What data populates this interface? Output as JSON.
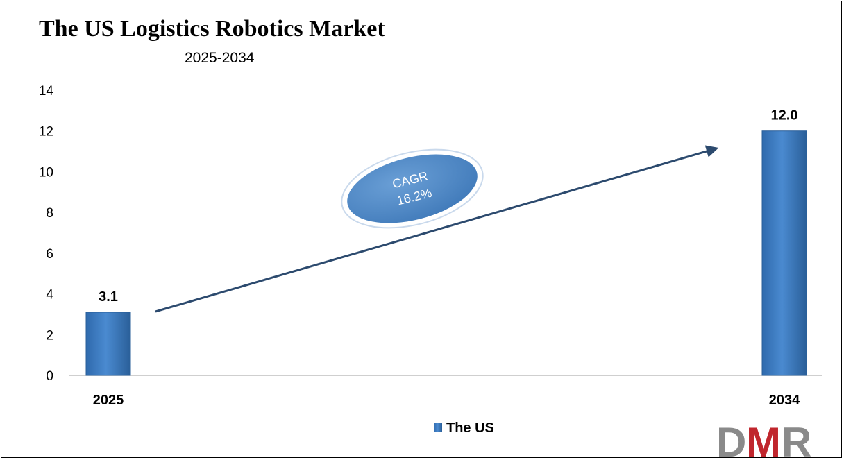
{
  "colors": {
    "bar": "#3f7fc4",
    "bar_dark": "#2a5f99",
    "arrow": "#2c4a6e",
    "ellipse_fill": "#4a86c5",
    "logo_gray": "#8a8a8a",
    "logo_red": "#c0262d"
  },
  "chart_data": {
    "type": "bar",
    "title": "The US Logistics Robotics Market",
    "subtitle": "2025-2034",
    "categories": [
      "2025",
      "2034"
    ],
    "series": [
      {
        "name": "The US",
        "values": [
          3.1,
          12.0
        ]
      }
    ],
    "data_labels": [
      "3.1",
      "12.0"
    ],
    "y_ticks": [
      "0",
      "2",
      "4",
      "6",
      "8",
      "10",
      "12",
      "14"
    ],
    "ylim": [
      0,
      14
    ],
    "grid": false,
    "legend_position": "bottom",
    "annotation": {
      "line1": "CAGR",
      "line2": "16.2%"
    }
  },
  "logo": {
    "text": "DMR"
  }
}
